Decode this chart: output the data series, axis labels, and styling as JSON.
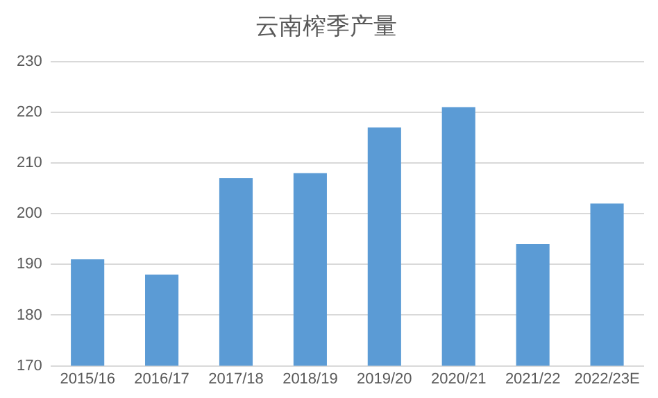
{
  "chart_data": {
    "type": "bar",
    "title": "云南榨季产量",
    "categories": [
      "2015/16",
      "2016/17",
      "2017/18",
      "2018/19",
      "2019/20",
      "2020/21",
      "2021/22",
      "2022/23E"
    ],
    "values": [
      191,
      188,
      207,
      208,
      217,
      221,
      194,
      202
    ],
    "color": "#5b9bd5",
    "ylim": [
      170,
      230
    ],
    "yticks": [
      170,
      180,
      190,
      200,
      210,
      220,
      230
    ],
    "grid": "y"
  }
}
